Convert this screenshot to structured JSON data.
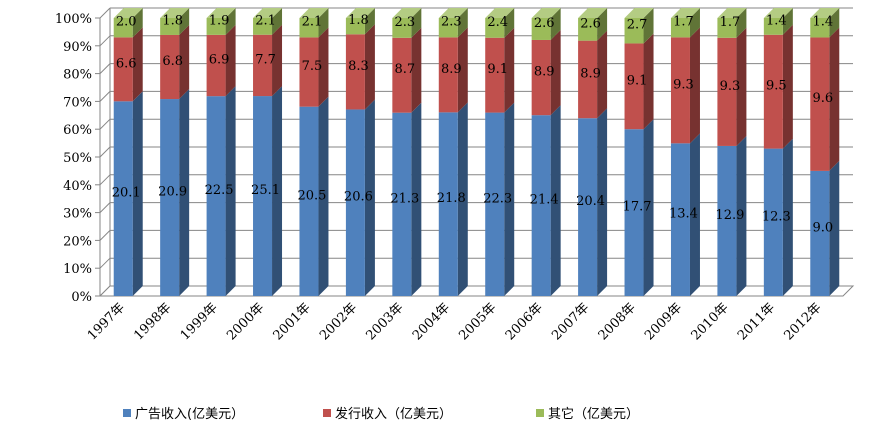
{
  "chart_data": {
    "type": "bar",
    "stacked": "percent",
    "grid": true,
    "legend_position": "bottom",
    "categories": [
      "1997年",
      "1998年",
      "1999年",
      "2000年",
      "2001年",
      "2002年",
      "2003年",
      "2004年",
      "2005年",
      "2006年",
      "2007年",
      "2008年",
      "2009年",
      "2010年",
      "2011年",
      "2012年"
    ],
    "y_ticks": [
      "0%",
      "10%",
      "20%",
      "30%",
      "40%",
      "50%",
      "60%",
      "70%",
      "80%",
      "90%",
      "100%"
    ],
    "ylim": [
      0,
      100
    ],
    "series": [
      {
        "name": "广告收入(亿美元）",
        "color": "#4f81bd",
        "values": [
          20.1,
          20.9,
          22.5,
          25.1,
          20.5,
          20.6,
          21.3,
          21.8,
          22.3,
          21.4,
          20.4,
          17.7,
          13.4,
          12.9,
          12.3,
          9.0
        ],
        "labels": [
          "20.1",
          "20.9",
          "22.5",
          "25.1",
          "20.5",
          "20.6",
          "21.3",
          "21.8",
          "22.3",
          "21.4",
          "20.4",
          "17.7",
          "13.4",
          "12.9",
          "12.3",
          "9.0"
        ]
      },
      {
        "name": "发行收入（亿美元）",
        "color": "#c0504d",
        "values": [
          6.6,
          6.8,
          6.9,
          7.7,
          7.5,
          8.3,
          8.7,
          8.9,
          9.1,
          8.9,
          8.9,
          9.1,
          9.3,
          9.3,
          9.5,
          9.6
        ],
        "labels": [
          "6.6",
          "6.8",
          "6.9",
          "7.7",
          "7.5",
          "8.3",
          "8.7",
          "8.9",
          "9.1",
          "8.9",
          "8.9",
          "9.1",
          "9.3",
          "9.3",
          "9.5",
          "9.6"
        ]
      },
      {
        "name": "其它（亿美元）",
        "color": "#9bbb59",
        "values": [
          2.0,
          1.8,
          1.9,
          2.1,
          2.1,
          1.8,
          2.3,
          2.3,
          2.4,
          2.6,
          2.6,
          2.7,
          1.7,
          1.7,
          1.4,
          1.4
        ],
        "labels": [
          "2.0",
          "1.8",
          "1.9",
          "2.1",
          "2.1",
          "1.8",
          "2.3",
          "2.3",
          "2.4",
          "2.6",
          "2.6",
          "2.7",
          "1.7",
          "1.7",
          "1.4",
          "1.4"
        ]
      }
    ]
  }
}
